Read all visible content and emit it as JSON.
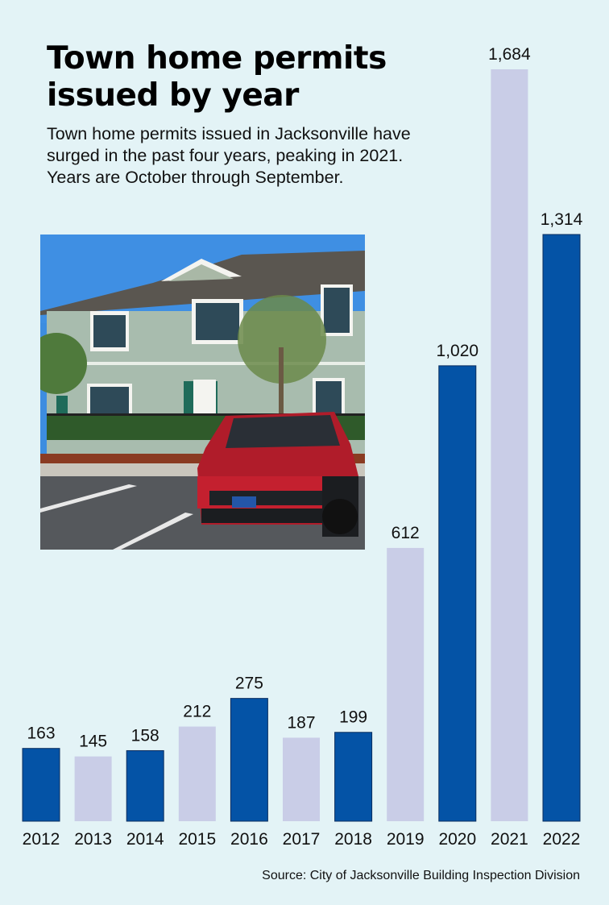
{
  "title": "Town home permits issued by year",
  "subtitle": "Town home permits issued in Jacksonville have surged in the past four years, peaking in 2021. Years are October through September.",
  "source": "Source: City of Jacksonville Building Inspection Division",
  "colors": {
    "background": "#e3f3f6",
    "dark_bar": "#0453a6",
    "light_bar": "#c9cde7"
  },
  "chart_data": {
    "type": "bar",
    "title": "Town home permits issued by year",
    "subtitle": "Town home permits issued in Jacksonville have surged in the past four years, peaking in 2021. Years are October through September.",
    "categories": [
      "2012",
      "2013",
      "2014",
      "2015",
      "2016",
      "2017",
      "2018",
      "2019",
      "2020",
      "2021",
      "2022"
    ],
    "values": [
      163,
      145,
      158,
      212,
      275,
      187,
      199,
      612,
      1020,
      1684,
      1314
    ],
    "value_labels": [
      "163",
      "145",
      "158",
      "212",
      "275",
      "187",
      "199",
      "612",
      "1,020",
      "1,684",
      "1,314"
    ],
    "bar_colors": [
      "dark",
      "light",
      "dark",
      "light",
      "dark",
      "light",
      "dark",
      "light",
      "dark",
      "light",
      "dark"
    ],
    "xlabel": "",
    "ylabel": "",
    "ylim": [
      0,
      1684
    ],
    "grid": false,
    "legend": "none"
  }
}
